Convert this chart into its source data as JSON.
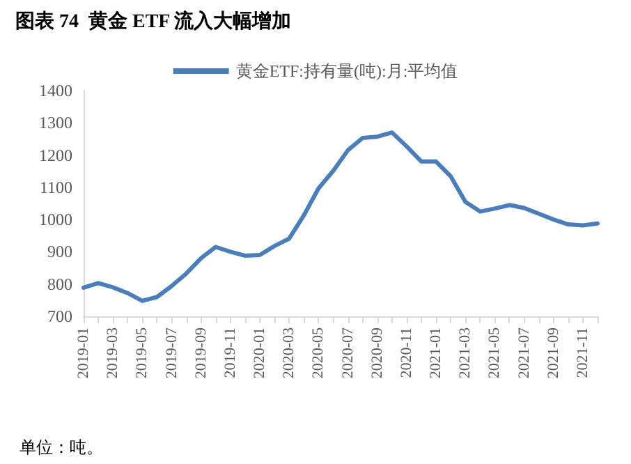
{
  "chart_data": {
    "type": "line",
    "title": "图表 74  黄金 ETF 流入大幅增加",
    "categories": [
      "2019-01",
      null,
      "2019-03",
      null,
      "2019-05",
      null,
      "2019-07",
      null,
      "2019-09",
      null,
      "2019-11",
      null,
      "2020-01",
      null,
      "2020-03",
      null,
      "2020-05",
      null,
      "2020-07",
      null,
      "2020-09",
      null,
      "2020-11",
      null,
      "2021-01",
      null,
      "2021-03",
      null,
      "2021-05",
      null,
      "2021-07",
      null,
      "2021-09",
      null,
      "2021-11",
      null
    ],
    "series": [
      {
        "name": "黄金ETF:持有量(吨):月:平均值",
        "color": "#4a7ebb",
        "values": [
          789,
          803,
          790,
          772,
          748,
          760,
          794,
          833,
          880,
          915,
          900,
          888,
          890,
          918,
          941,
          1013,
          1097,
          1151,
          1215,
          1253,
          1257,
          1270,
          1227,
          1180,
          1180,
          1134,
          1055,
          1025,
          1034,
          1045,
          1036,
          1018,
          1000,
          985,
          982,
          988
        ]
      }
    ],
    "ylim": [
      700,
      1400
    ],
    "yticks": [
      700,
      800,
      900,
      1000,
      1100,
      1200,
      1300,
      1400
    ],
    "grid": false,
    "legend": "top",
    "marker": "none",
    "line_style": "solid",
    "annotations": [
      "单位：吨。"
    ]
  }
}
